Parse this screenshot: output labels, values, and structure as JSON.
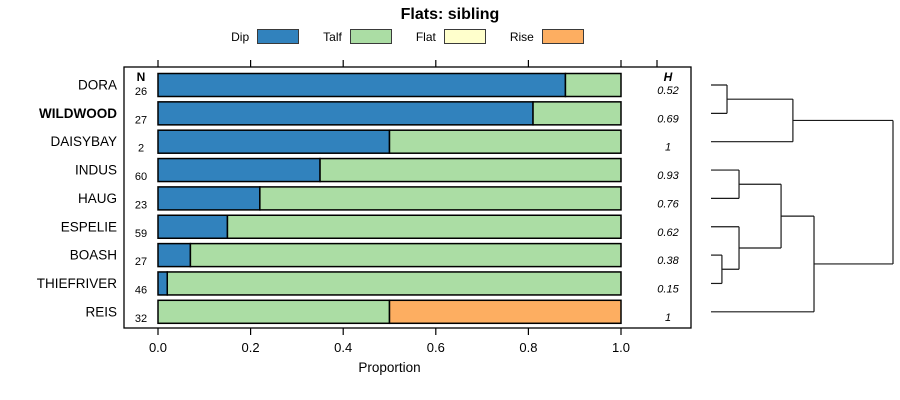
{
  "title": "Flats: sibling",
  "legend": {
    "items": [
      {
        "label": "Dip",
        "color": "#3182BD"
      },
      {
        "label": "Talf",
        "color": "#ABDDA4"
      },
      {
        "label": "Flat",
        "color": "#FFFFCC"
      },
      {
        "label": "Rise",
        "color": "#FDAE61"
      }
    ]
  },
  "chart_data": {
    "type": "bar",
    "orientation": "horizontal",
    "stacked": true,
    "title": "Flats: sibling",
    "xlabel": "Proportion",
    "xlim": [
      0,
      1
    ],
    "xticks": [
      "0.0",
      "0.2",
      "0.4",
      "0.6",
      "0.8",
      "1.0"
    ],
    "grid": false,
    "legend_position": "top",
    "categories": [
      "DORA",
      "WILDWOOD",
      "DAISYBAY",
      "INDUS",
      "HAUG",
      "ESPELIE",
      "BOASH",
      "THIEFRIVER",
      "REIS"
    ],
    "category_bold": [
      false,
      true,
      false,
      false,
      false,
      false,
      false,
      false,
      false
    ],
    "n_header": "N",
    "n_values": [
      26,
      27,
      2,
      60,
      23,
      59,
      27,
      46,
      32
    ],
    "h_header": "H",
    "h_values": [
      "0.52",
      "0.69",
      "1",
      "0.93",
      "0.76",
      "0.62",
      "0.38",
      "0.15",
      "1"
    ],
    "series": [
      {
        "name": "Dip",
        "color": "#3182BD",
        "values": [
          0.88,
          0.81,
          0.5,
          0.35,
          0.22,
          0.15,
          0.07,
          0.02,
          0
        ]
      },
      {
        "name": "Talf",
        "color": "#ABDDA4",
        "values": [
          0.12,
          0.19,
          0.5,
          0.65,
          0.78,
          0.85,
          0.93,
          0.98,
          0.5
        ]
      },
      {
        "name": "Flat",
        "color": "#FFFFCC",
        "values": [
          0,
          0,
          0,
          0,
          0,
          0,
          0,
          0,
          0
        ]
      },
      {
        "name": "Rise",
        "color": "#FDAE61",
        "values": [
          0,
          0,
          0,
          0,
          0,
          0,
          0,
          0,
          0.5
        ]
      }
    ],
    "dendrogram": {
      "height": 1.0,
      "children": [
        {
          "height": 0.088,
          "children": [
            {
              "height": 0.45,
              "children": [
                {
                  "height": 0.088,
                  "children": [
                    {
                      "leaf": "DORA"
                    },
                    {
                      "leaf": "WILDWOOD"
                    }
                  ]
                },
                {
                  "leaf": "DAISYBAY"
                }
              ]
            }
          ],
          "note": "upper-branch"
        },
        {
          "height": 0.566,
          "children": [
            {
              "height": 0.385,
              "children": [
                {
                  "height": 0.154,
                  "children": [
                    {
                      "leaf": "INDUS"
                    },
                    {
                      "leaf": "HAUG"
                    }
                  ]
                },
                {
                  "height": 0.154,
                  "children": [
                    {
                      "leaf": "ESPELIE"
                    },
                    {
                      "height": 0.06,
                      "children": [
                        {
                          "leaf": "BOASH"
                        },
                        {
                          "leaf": "THIEFRIVER"
                        }
                      ]
                    }
                  ]
                }
              ]
            },
            {
              "leaf": "REIS"
            }
          ]
        }
      ]
    }
  }
}
